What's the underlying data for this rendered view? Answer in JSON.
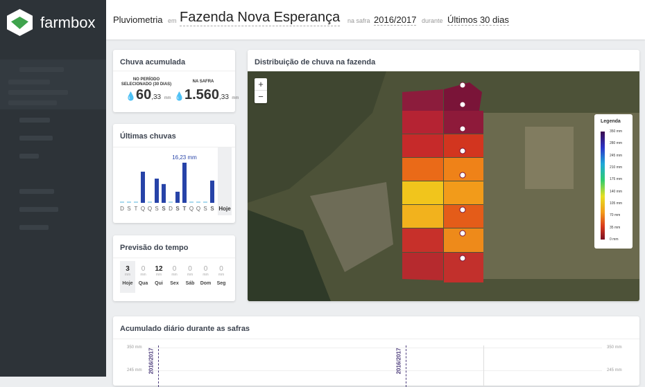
{
  "header": {
    "app_name": "farmbox",
    "page": "Pluviometria",
    "em": "em",
    "farm": "Fazenda Nova Esperança",
    "season_prefix": "na safra",
    "season": "2016/2017",
    "period_prefix": "durante",
    "period": "Últimos 30 dias"
  },
  "accumulated": {
    "title": "Chuva acumulada",
    "period_label": "NO PERÍODO SELECIONADO (30 DIAS)",
    "period_int": "60",
    "period_dec": ",33",
    "period_unit": "mm",
    "season_label": "NA SAFRA",
    "season_int": "1.560",
    "season_dec": ",33",
    "season_unit": "mm"
  },
  "recent_rain": {
    "title": "Últimas chuvas",
    "annotation": "16,23 mm",
    "categories": [
      "D",
      "S",
      "T",
      "Q",
      "Q",
      "S",
      "S",
      "D",
      "S",
      "T",
      "Q",
      "Q",
      "S",
      "S"
    ],
    "values": [
      0,
      0,
      0,
      12.6,
      0,
      9.8,
      7.6,
      0,
      4.5,
      16.23,
      0,
      0,
      0,
      9
    ],
    "today": "Hoje"
  },
  "forecast": {
    "title": "Previsão do tempo",
    "days": [
      {
        "value": "3",
        "unit": "mm",
        "day": "Hoje"
      },
      {
        "value": "0",
        "unit": "mm",
        "day": "Qua"
      },
      {
        "value": "12",
        "unit": "mm",
        "day": "Qui"
      },
      {
        "value": "0",
        "unit": "mm",
        "day": "Sex"
      },
      {
        "value": "0",
        "unit": "mm",
        "day": "Sáb"
      },
      {
        "value": "0",
        "unit": "mm",
        "day": "Dom"
      },
      {
        "value": "0",
        "unit": "mm",
        "day": "Seg"
      }
    ]
  },
  "map": {
    "title": "Distribuição de chuva na fazenda",
    "zoom_in": "+",
    "zoom_out": "−",
    "legend_title": "Legenda",
    "legend_ticks": [
      "350 mm",
      "280 mm",
      "245 mm",
      "210 mm",
      "175 mm",
      "140 mm",
      "105 mm",
      "70 mm",
      "35 mm",
      "0 mm"
    ]
  },
  "daily": {
    "title": "Acumulado diário durante as safras",
    "y_labels_left": [
      "350 mm",
      "245 mm"
    ],
    "y_labels_right": [
      "350 mm",
      "245 mm"
    ],
    "seasons": [
      "2016/2017",
      "2016/2017"
    ]
  }
}
